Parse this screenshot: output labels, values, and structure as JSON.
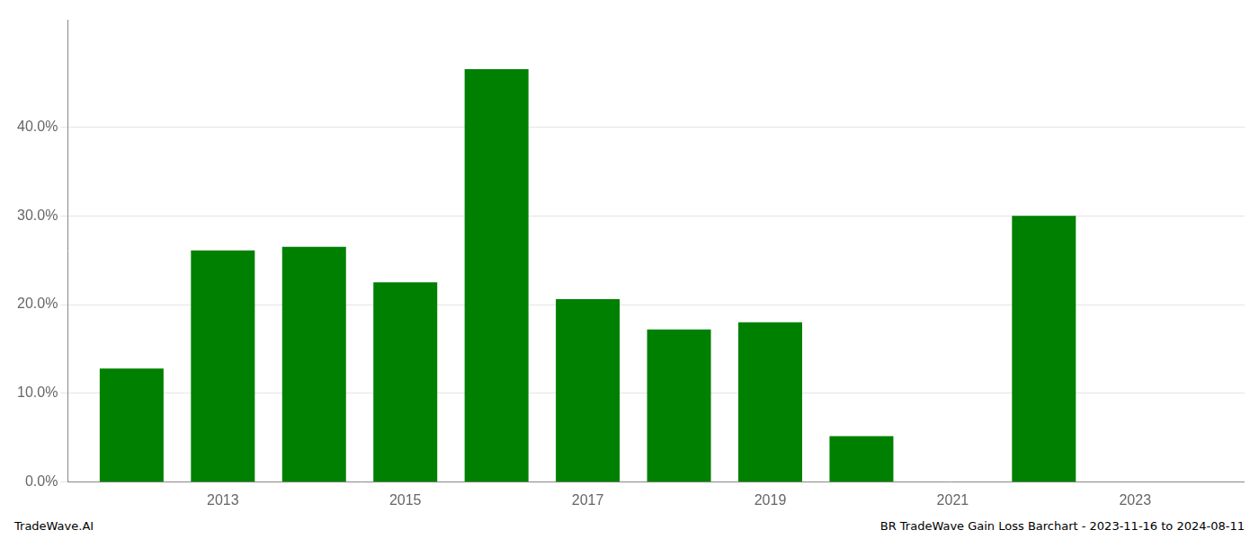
{
  "chart_data": {
    "type": "bar",
    "x": [
      2012,
      2013,
      2014,
      2015,
      2016,
      2017,
      2018,
      2019,
      2020,
      2022
    ],
    "values": [
      0.128,
      0.261,
      0.265,
      0.225,
      0.465,
      0.206,
      0.172,
      0.18,
      0.052,
      0.3
    ],
    "color": "#008000",
    "xlim": [
      2011.3,
      2024.2
    ],
    "xticks": [
      2013,
      2015,
      2017,
      2019,
      2021,
      2023
    ],
    "ylim": [
      0.0,
      0.52
    ],
    "yticks": [
      {
        "value": 0.0,
        "label": "0.0%"
      },
      {
        "value": 0.1,
        "label": "10.0%"
      },
      {
        "value": 0.2,
        "label": "20.0%"
      },
      {
        "value": 0.3,
        "label": "30.0%"
      },
      {
        "value": 0.4,
        "label": "40.0%"
      }
    ],
    "grid": "y",
    "annotations": [
      "TradeWave.AI",
      "BR TradeWave Gain Loss Barchart - 2023-11-16 to 2024-08-11"
    ]
  }
}
